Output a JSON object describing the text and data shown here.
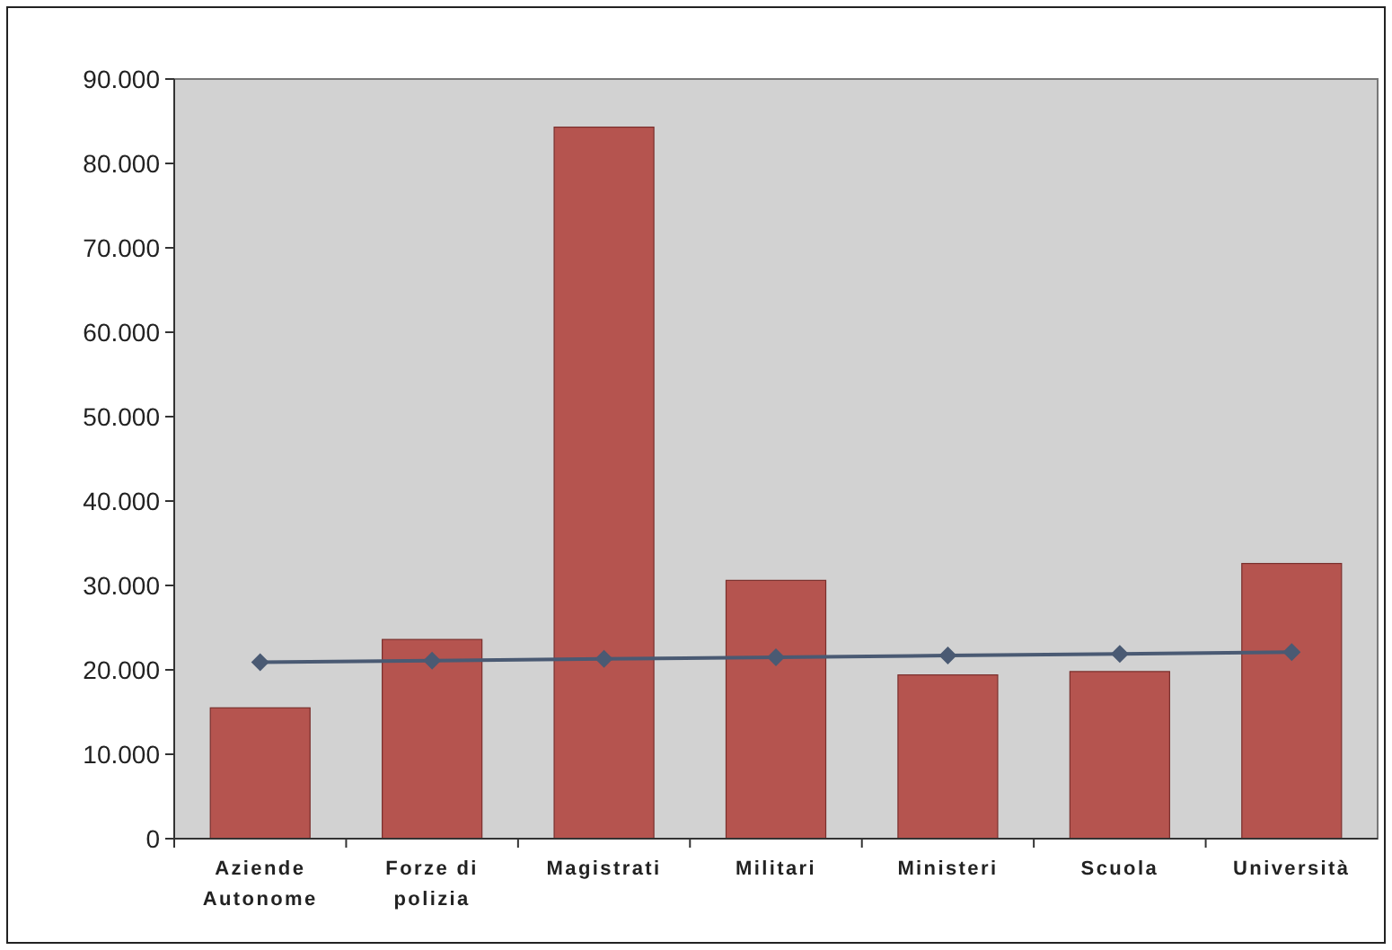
{
  "chart_data": {
    "type": "bar",
    "categories": [
      "Aziende Autonome",
      "Forze di polizia",
      "Magistrati",
      "Militari",
      "Ministeri",
      "Scuola",
      "Università"
    ],
    "series": [
      {
        "color": "#b5544f",
        "values": [
          15500,
          23600,
          84300,
          30600,
          19400,
          19800,
          32600
        ]
      },
      {
        "type": "line",
        "color": "#4a5a73",
        "values": [
          20900,
          21100,
          21300,
          21500,
          21700,
          21900,
          22100
        ],
        "marker": "diamond"
      }
    ],
    "ylim": [
      0,
      90000
    ],
    "yticks": [
      {
        "value": 0,
        "label": "0"
      },
      {
        "value": 10000,
        "label": "10.000"
      },
      {
        "value": 20000,
        "label": "20.000"
      },
      {
        "value": 30000,
        "label": "30.000"
      },
      {
        "value": 40000,
        "label": "40.000"
      },
      {
        "value": 50000,
        "label": "50.000"
      },
      {
        "value": 60000,
        "label": "60.000"
      },
      {
        "value": 70000,
        "label": "70.000"
      },
      {
        "value": 80000,
        "label": "80.000"
      },
      {
        "value": 90000,
        "label": "90.000"
      }
    ],
    "grid": false
  }
}
